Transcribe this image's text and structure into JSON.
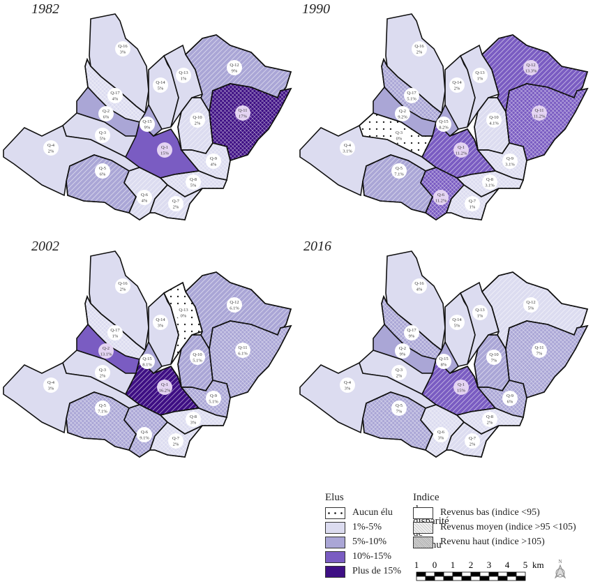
{
  "colors": {
    "aucun": "#ffffff",
    "c1_5": "#dcdcf0",
    "c5_10": "#aaa6d6",
    "c10_15": "#7a5cc2",
    "c15": "#3e0f84"
  },
  "maps": [
    {
      "year": "1982",
      "districts": {
        "Q-1": {
          "v": "15%",
          "c": "c10_15",
          "i": "bas"
        },
        "Q-2": {
          "v": "6%",
          "c": "c5_10",
          "i": "bas"
        },
        "Q-3": {
          "v": "5%",
          "c": "c1_5",
          "i": "bas"
        },
        "Q-4": {
          "v": "2%",
          "c": "c1_5",
          "i": "bas"
        },
        "Q-5": {
          "v": "6%",
          "c": "c5_10",
          "i": "moyen"
        },
        "Q-6": {
          "v": "4%",
          "c": "c1_5",
          "i": "moyen"
        },
        "Q-7": {
          "v": "2%",
          "c": "c1_5",
          "i": "moyen"
        },
        "Q-8": {
          "v": "5%",
          "c": "c1_5",
          "i": "haut"
        },
        "Q-9": {
          "v": "4%",
          "c": "c1_5",
          "i": "haut"
        },
        "Q-10": {
          "v": "2%",
          "c": "c1_5",
          "i": "moyen"
        },
        "Q-11": {
          "v": "17%",
          "c": "c15",
          "i": "haut"
        },
        "Q-12": {
          "v": "9%",
          "c": "c5_10",
          "i": "moyen"
        },
        "Q-13": {
          "v": "1%",
          "c": "c1_5",
          "i": "bas"
        },
        "Q-14": {
          "v": "5%",
          "c": "c1_5",
          "i": "bas"
        },
        "Q-15": {
          "v": "9%",
          "c": "c5_10",
          "i": "bas"
        },
        "Q-16": {
          "v": "3%",
          "c": "c1_5",
          "i": "bas"
        },
        "Q-17": {
          "v": "4%",
          "c": "c1_5",
          "i": "haut"
        }
      }
    },
    {
      "year": "1990",
      "districts": {
        "Q-1": {
          "v": "11.2%",
          "c": "c10_15",
          "i": "moyen"
        },
        "Q-2": {
          "v": "9.2%",
          "c": "c5_10",
          "i": "bas"
        },
        "Q-3": {
          "v": "0%",
          "c": "aucun",
          "i": "bas"
        },
        "Q-4": {
          "v": "3.1%",
          "c": "c1_5",
          "i": "bas"
        },
        "Q-5": {
          "v": "7.1%",
          "c": "c5_10",
          "i": "moyen"
        },
        "Q-6": {
          "v": "11.2%",
          "c": "c10_15",
          "i": "haut"
        },
        "Q-7": {
          "v": "1%",
          "c": "c1_5",
          "i": "haut"
        },
        "Q-8": {
          "v": "3.1%",
          "c": "c1_5",
          "i": "haut"
        },
        "Q-9": {
          "v": "3.1%",
          "c": "c1_5",
          "i": "haut"
        },
        "Q-10": {
          "v": "4.1%",
          "c": "c1_5",
          "i": "moyen"
        },
        "Q-11": {
          "v": "11.2%",
          "c": "c10_15",
          "i": "haut"
        },
        "Q-12": {
          "v": "13.3%",
          "c": "c10_15",
          "i": "moyen"
        },
        "Q-13": {
          "v": "1%",
          "c": "c1_5",
          "i": "bas"
        },
        "Q-14": {
          "v": "2%",
          "c": "c1_5",
          "i": "bas"
        },
        "Q-15": {
          "v": "8.2%",
          "c": "c5_10",
          "i": "bas"
        },
        "Q-16": {
          "v": "2%",
          "c": "c1_5",
          "i": "bas"
        },
        "Q-17": {
          "v": "5.1%",
          "c": "c5_10",
          "i": "haut"
        }
      }
    },
    {
      "year": "2002",
      "districts": {
        "Q-1": {
          "v": "16.2%",
          "c": "c15",
          "i": "moyen"
        },
        "Q-2": {
          "v": "13.1%",
          "c": "c10_15",
          "i": "bas"
        },
        "Q-3": {
          "v": "2%",
          "c": "c1_5",
          "i": "bas"
        },
        "Q-4": {
          "v": "3%",
          "c": "c1_5",
          "i": "bas"
        },
        "Q-5": {
          "v": "7.1%",
          "c": "c5_10",
          "i": "haut"
        },
        "Q-6": {
          "v": "9.1%",
          "c": "c5_10",
          "i": "haut"
        },
        "Q-7": {
          "v": "2%",
          "c": "c1_5",
          "i": "haut"
        },
        "Q-8": {
          "v": "3%",
          "c": "c1_5",
          "i": "haut"
        },
        "Q-9": {
          "v": "5.1%",
          "c": "c5_10",
          "i": "haut"
        },
        "Q-10": {
          "v": "5.1%",
          "c": "c5_10",
          "i": "moyen"
        },
        "Q-11": {
          "v": "6.1%",
          "c": "c5_10",
          "i": "haut"
        },
        "Q-12": {
          "v": "6.1%",
          "c": "c5_10",
          "i": "moyen"
        },
        "Q-13": {
          "v": "0%",
          "c": "aucun",
          "i": "bas"
        },
        "Q-14": {
          "v": "3%",
          "c": "c1_5",
          "i": "bas"
        },
        "Q-15": {
          "v": "8.1%",
          "c": "c5_10",
          "i": "bas"
        },
        "Q-16": {
          "v": "2%",
          "c": "c1_5",
          "i": "bas"
        },
        "Q-17": {
          "v": "1%",
          "c": "c1_5",
          "i": "haut"
        }
      }
    },
    {
      "year": "2016",
      "districts": {
        "Q-1": {
          "v": "15%",
          "c": "c10_15",
          "i": "moyen"
        },
        "Q-2": {
          "v": "9%",
          "c": "c5_10",
          "i": "bas"
        },
        "Q-3": {
          "v": "2%",
          "c": "c1_5",
          "i": "bas"
        },
        "Q-4": {
          "v": "3%",
          "c": "c1_5",
          "i": "bas"
        },
        "Q-5": {
          "v": "7%",
          "c": "c5_10",
          "i": "haut"
        },
        "Q-6": {
          "v": "3%",
          "c": "c1_5",
          "i": "haut"
        },
        "Q-7": {
          "v": "2%",
          "c": "c1_5",
          "i": "moyen"
        },
        "Q-8": {
          "v": "2%",
          "c": "c1_5",
          "i": "haut"
        },
        "Q-9": {
          "v": "6%",
          "c": "c5_10",
          "i": "haut"
        },
        "Q-10": {
          "v": "7%",
          "c": "c5_10",
          "i": "moyen"
        },
        "Q-11": {
          "v": "7%",
          "c": "c5_10",
          "i": "haut"
        },
        "Q-12": {
          "v": "5%",
          "c": "c1_5",
          "i": "moyen"
        },
        "Q-13": {
          "v": "1%",
          "c": "c1_5",
          "i": "bas"
        },
        "Q-14": {
          "v": "5%",
          "c": "c1_5",
          "i": "bas"
        },
        "Q-15": {
          "v": "8%",
          "c": "c5_10",
          "i": "bas"
        },
        "Q-16": {
          "v": "4%",
          "c": "c1_5",
          "i": "bas"
        },
        "Q-17": {
          "v": "9%",
          "c": "c5_10",
          "i": "haut"
        }
      }
    }
  ],
  "legend": {
    "elus_title": "Elus",
    "elus": [
      {
        "key": "aucun",
        "label": "Aucun élu"
      },
      {
        "key": "c1_5",
        "label": "1%-5%"
      },
      {
        "key": "c5_10",
        "label": "5%-10%"
      },
      {
        "key": "c10_15",
        "label": "10%-15%"
      },
      {
        "key": "c15",
        "label": "Plus de 15%"
      }
    ],
    "income_title": "Indice de disparité de revenu",
    "income": [
      {
        "key": "bas",
        "label": "Revenus bas (indice <95)"
      },
      {
        "key": "moyen",
        "label": "Revenus moyen (indice >95 <105)"
      },
      {
        "key": "haut",
        "label": "Revenu haut (indice >105)"
      }
    ]
  },
  "scale": {
    "ticks": [
      "1",
      "0",
      "1",
      "2",
      "3",
      "4",
      "5"
    ],
    "unit": "km"
  },
  "north_label": "N"
}
